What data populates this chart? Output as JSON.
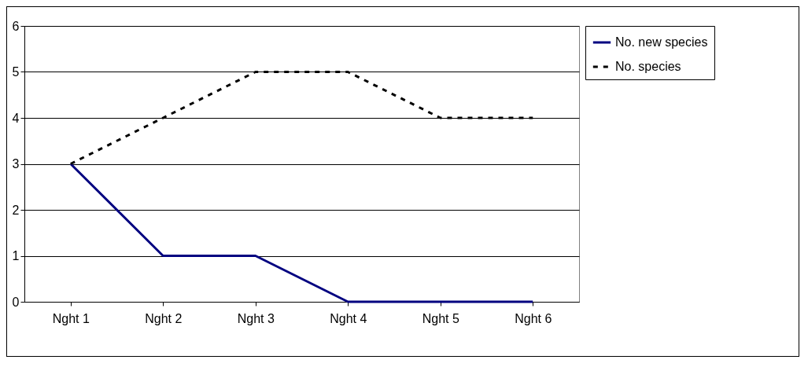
{
  "chart_data": {
    "type": "line",
    "categories": [
      "Nght 1",
      "Nght 2",
      "Nght 3",
      "Nght 4",
      "Nght 5",
      "Nght 6"
    ],
    "series": [
      {
        "name": "No. new species",
        "color": "#000080",
        "line_style": "solid",
        "values": [
          3,
          1,
          1,
          0,
          0,
          0
        ]
      },
      {
        "name": "No. species",
        "color": "#000000",
        "line_style": "dotted",
        "values": [
          3,
          4,
          5,
          5,
          4,
          4
        ]
      }
    ],
    "ylim": [
      0,
      6
    ],
    "yticks": [
      0,
      1,
      2,
      3,
      4,
      5,
      6
    ],
    "grid": "y",
    "legend": "right",
    "marker": "none"
  }
}
